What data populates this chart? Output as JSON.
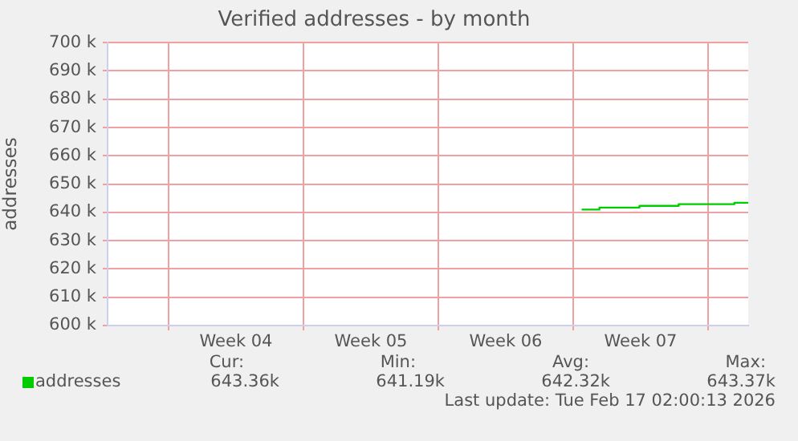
{
  "chart_data": {
    "type": "step",
    "title": "Verified addresses - by month",
    "ylabel": "addresses",
    "x": [
      "2026-02-09T10:30",
      "2026-02-10T08:40",
      "2026-02-12T10:30",
      "2026-02-14T11:20",
      "2026-02-17T08:40",
      "2026-02-18T02:00"
    ],
    "series": [
      {
        "name": "addresses",
        "color": "#00cc00",
        "values": [
          641000,
          641700,
          642300,
          642900,
          643400,
          643400
        ]
      }
    ],
    "xlim": [
      "2026-01-15T20:00",
      "2026-02-18T02:00"
    ],
    "xticks": [
      {
        "value": "2026-01-19",
        "label": null
      },
      {
        "value": "2026-01-22T12:00",
        "label": "Week 04"
      },
      {
        "value": "2026-01-26",
        "label": null
      },
      {
        "value": "2026-01-29T12:00",
        "label": "Week 05"
      },
      {
        "value": "2026-02-02",
        "label": null
      },
      {
        "value": "2026-02-05T12:00",
        "label": "Week 06"
      },
      {
        "value": "2026-02-09",
        "label": null
      },
      {
        "value": "2026-02-12T12:00",
        "label": "Week 07"
      },
      {
        "value": "2026-02-16",
        "label": null
      }
    ],
    "ylim": [
      600000,
      700000
    ],
    "yticks": [
      {
        "value": 600000,
        "label": "600 k"
      },
      {
        "value": 610000,
        "label": "610 k"
      },
      {
        "value": 620000,
        "label": "620 k"
      },
      {
        "value": 630000,
        "label": "630 k"
      },
      {
        "value": 640000,
        "label": "640 k"
      },
      {
        "value": 650000,
        "label": "650 k"
      },
      {
        "value": 660000,
        "label": "660 k"
      },
      {
        "value": 670000,
        "label": "670 k"
      },
      {
        "value": 680000,
        "label": "680 k"
      },
      {
        "value": 690000,
        "label": "690 k"
      },
      {
        "value": 700000,
        "label": "700 k"
      }
    ],
    "grid": true,
    "legend": "bottom",
    "marker": "none",
    "line_style": "solid",
    "annotations": [
      "Cur:",
      "643.36k",
      "Min:",
      "641.19k",
      "Avg:",
      "642.32k",
      "Max:",
      "643.37k",
      "Last update: Tue Feb 17 02:00:13 2026"
    ]
  }
}
